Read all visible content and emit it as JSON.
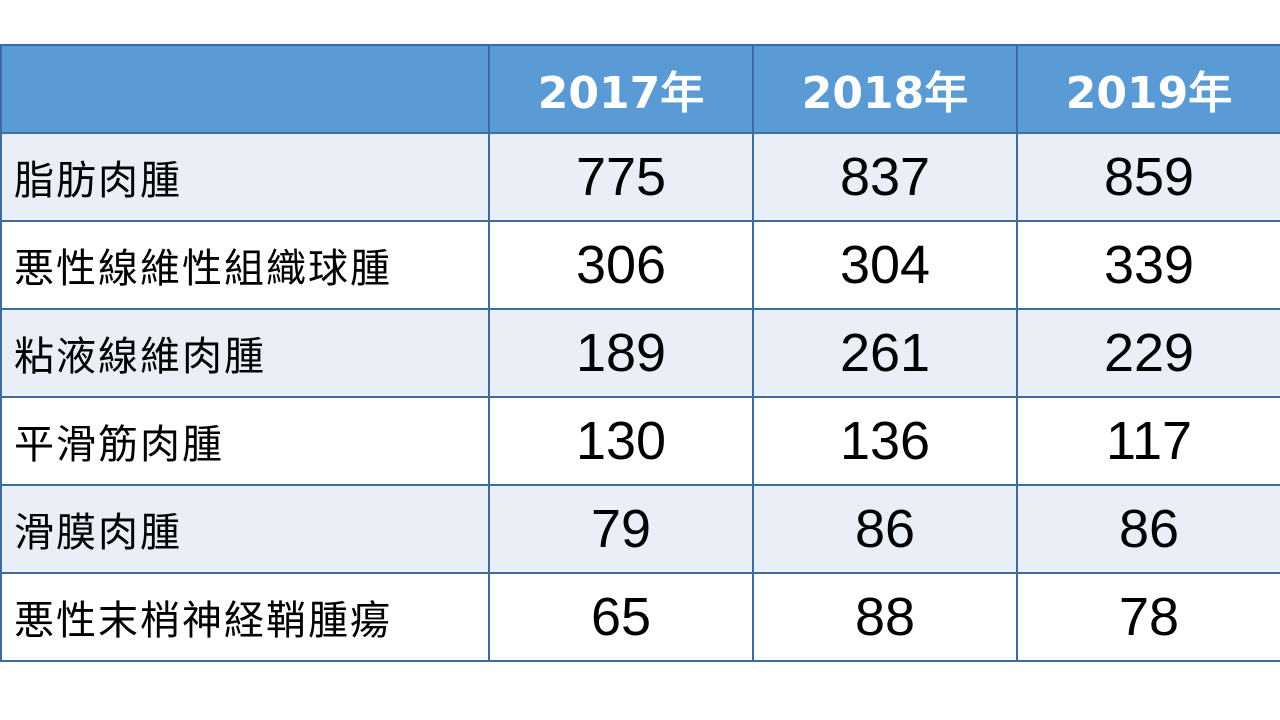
{
  "chart_data": {
    "type": "table",
    "columns": [
      "",
      "2017年",
      "2018年",
      "2019年"
    ],
    "rows": [
      {
        "label": "脂肪肉腫",
        "values": [
          775,
          837,
          859
        ]
      },
      {
        "label": "悪性線維性組織球腫",
        "values": [
          306,
          304,
          339
        ]
      },
      {
        "label": "粘液線維肉腫",
        "values": [
          189,
          261,
          229
        ]
      },
      {
        "label": "平滑筋肉腫",
        "values": [
          130,
          136,
          117
        ]
      },
      {
        "label": "滑膜肉腫",
        "values": [
          79,
          86,
          86
        ]
      },
      {
        "label": "悪性末梢神経鞘腫瘍",
        "values": [
          65,
          88,
          78
        ]
      }
    ]
  },
  "colors": {
    "header_bg": "#5b9bd5",
    "header_text": "#ffffff",
    "row_shade": "#e9eef7",
    "row_plain": "#ffffff",
    "border": "#3f6aa3"
  }
}
